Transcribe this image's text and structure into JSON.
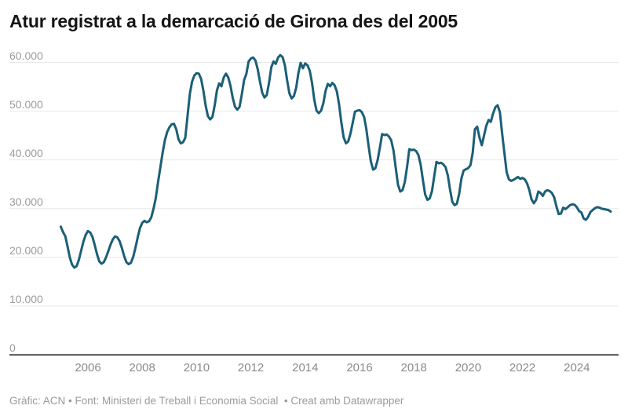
{
  "header": {
    "title": "Atur registrat a la demarcació de Girona des del 2005"
  },
  "footer": {
    "text": "Gràfic: ACN • Font: Ministeri de Treball i Economia Social  • Creat amb Datawrapper"
  },
  "chart_data": {
    "type": "line",
    "title": "Atur registrat a la demarcació de Girona des del 2005",
    "xlabel": "",
    "ylabel": "",
    "x_axis": {
      "domain": [
        2005.0,
        2025.4
      ],
      "ticks": [
        {
          "value": 2006,
          "label": "2006"
        },
        {
          "value": 2008,
          "label": "2008"
        },
        {
          "value": 2010,
          "label": "2010"
        },
        {
          "value": 2012,
          "label": "2012"
        },
        {
          "value": 2014,
          "label": "2014"
        },
        {
          "value": 2016,
          "label": "2016"
        },
        {
          "value": 2018,
          "label": "2018"
        },
        {
          "value": 2020,
          "label": "2020"
        },
        {
          "value": 2022,
          "label": "2022"
        },
        {
          "value": 2024,
          "label": "2024"
        }
      ]
    },
    "y_axis": {
      "domain": [
        0,
        62000
      ],
      "grid": true,
      "ticks": [
        {
          "value": 0,
          "label": "0"
        },
        {
          "value": 10000,
          "label": "10.000"
        },
        {
          "value": 20000,
          "label": "20.000"
        },
        {
          "value": 30000,
          "label": "30.000"
        },
        {
          "value": 40000,
          "label": "40.000"
        },
        {
          "value": 50000,
          "label": "50.000"
        },
        {
          "value": 60000,
          "label": "60.000"
        }
      ]
    },
    "colors": {
      "line": "#1b5f77",
      "grid": "#e8e8e8",
      "baseline": "#2e2e2e",
      "tick_text": "#9b9b9b",
      "title_text": "#151515"
    },
    "series": [
      {
        "start_year": 2005,
        "start_month": 1,
        "frequency": "monthly",
        "values": [
          26300,
          25200,
          24300,
          22200,
          20000,
          18500,
          17900,
          18200,
          19500,
          21400,
          23200,
          24600,
          25400,
          25100,
          24200,
          22500,
          20700,
          19200,
          18700,
          19000,
          20000,
          21300,
          22600,
          23700,
          24300,
          24100,
          23300,
          21900,
          20300,
          19000,
          18600,
          18900,
          20100,
          22000,
          24100,
          26000,
          27100,
          27500,
          27200,
          27400,
          28200,
          30000,
          32200,
          35500,
          38500,
          41500,
          44000,
          45700,
          46700,
          47300,
          47400,
          46300,
          44300,
          43400,
          43600,
          44500,
          49000,
          53500,
          56000,
          57300,
          57800,
          57700,
          56600,
          54200,
          51200,
          49000,
          48300,
          48800,
          51200,
          54300,
          55700,
          55100,
          56900,
          57700,
          56900,
          55200,
          52700,
          50900,
          50300,
          50900,
          53500,
          56400,
          57600,
          60200,
          60800,
          61000,
          60400,
          58600,
          56100,
          53800,
          52800,
          53300,
          55800,
          59000,
          60200,
          59700,
          61000,
          61500,
          61100,
          59400,
          56400,
          53700,
          52600,
          53100,
          54800,
          57800,
          59900,
          58800,
          59800,
          59400,
          58300,
          55800,
          52400,
          50100,
          49600,
          50100,
          51600,
          54200,
          55600,
          55100,
          55800,
          55300,
          54000,
          51200,
          47600,
          44600,
          43400,
          43800,
          45400,
          47700,
          49900,
          50100,
          50200,
          49800,
          48800,
          46400,
          42900,
          39700,
          38000,
          38300,
          40000,
          42600,
          45300,
          45100,
          45200,
          44800,
          44000,
          41900,
          38400,
          34900,
          33500,
          33800,
          35500,
          38600,
          42200,
          42000,
          42100,
          41800,
          41000,
          39000,
          35900,
          32900,
          31800,
          32100,
          33600,
          36600,
          39600,
          39300,
          39400,
          39100,
          38500,
          36800,
          33900,
          31400,
          30700,
          31000,
          33000,
          36200,
          37800,
          38100,
          38300,
          38900,
          41500,
          46300,
          46800,
          44600,
          43000,
          45000,
          47000,
          48200,
          47800,
          49500,
          50800,
          51200,
          49800,
          45500,
          41500,
          37500,
          36000,
          35700,
          35900,
          36200,
          36500,
          36100,
          36300,
          36000,
          35200,
          33800,
          31900,
          31100,
          31800,
          33500,
          33200,
          32600,
          33500,
          33800,
          33600,
          33200,
          32300,
          30400,
          28900,
          29000,
          30200,
          29900,
          30300,
          30700,
          30900,
          30800,
          30300,
          29500,
          29200,
          28000,
          27700,
          28300,
          29300,
          29700,
          30100,
          30300,
          30200,
          30000,
          29900,
          29800,
          29700,
          29400
        ]
      }
    ]
  }
}
